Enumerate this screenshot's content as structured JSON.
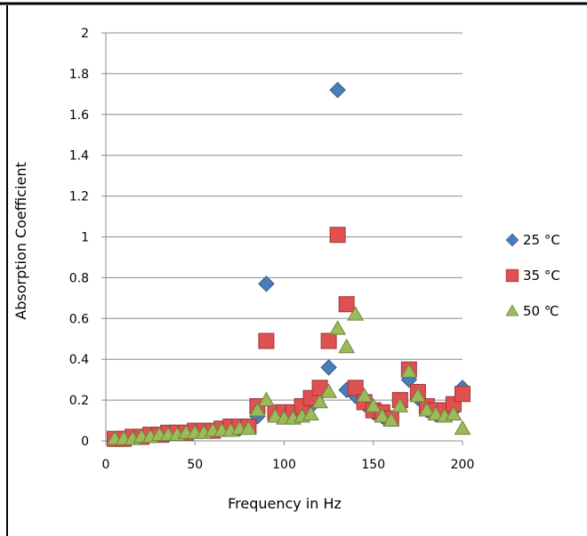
{
  "chart_data": {
    "type": "scatter",
    "title": "",
    "xlabel": "Frequency in Hz",
    "ylabel": "Absorption Coefficient",
    "xlim": [
      0,
      200
    ],
    "ylim": [
      0,
      2
    ],
    "xticks": [
      0,
      50,
      100,
      150,
      200
    ],
    "yticks": [
      0,
      0.2,
      0.4,
      0.6,
      0.8,
      1,
      1.2,
      1.4,
      1.6,
      1.8,
      2
    ],
    "grid": "horizontal",
    "legend_position": "right",
    "series": [
      {
        "name": "25 °C",
        "marker": "diamond",
        "color": "#4a7ebb",
        "x": [
          5,
          10,
          15,
          20,
          25,
          30,
          35,
          40,
          45,
          50,
          55,
          60,
          65,
          70,
          75,
          80,
          85,
          90,
          95,
          100,
          105,
          110,
          115,
          120,
          125,
          130,
          135,
          140,
          145,
          150,
          155,
          160,
          165,
          170,
          175,
          180,
          185,
          190,
          195,
          200
        ],
        "y": [
          0.01,
          0.01,
          0.02,
          0.02,
          0.03,
          0.03,
          0.03,
          0.04,
          0.04,
          0.05,
          0.05,
          0.05,
          0.06,
          0.06,
          0.06,
          0.07,
          0.12,
          0.77,
          0.13,
          0.13,
          0.13,
          0.14,
          0.17,
          0.23,
          0.36,
          1.72,
          0.25,
          0.22,
          0.18,
          0.14,
          0.12,
          0.11,
          0.2,
          0.3,
          0.21,
          0.15,
          0.13,
          0.13,
          0.15,
          0.26
        ]
      },
      {
        "name": "35 °C",
        "marker": "square",
        "color": "#e05050",
        "x": [
          5,
          10,
          15,
          20,
          25,
          30,
          35,
          40,
          45,
          50,
          55,
          60,
          65,
          70,
          75,
          80,
          85,
          90,
          95,
          100,
          105,
          110,
          115,
          120,
          125,
          130,
          135,
          140,
          145,
          150,
          155,
          160,
          165,
          170,
          175,
          180,
          185,
          190,
          195,
          200
        ],
        "y": [
          0.01,
          0.01,
          0.02,
          0.02,
          0.03,
          0.03,
          0.04,
          0.04,
          0.04,
          0.05,
          0.05,
          0.05,
          0.06,
          0.07,
          0.07,
          0.07,
          0.17,
          0.49,
          0.14,
          0.14,
          0.14,
          0.17,
          0.21,
          0.26,
          0.49,
          1.01,
          0.67,
          0.26,
          0.19,
          0.15,
          0.14,
          0.11,
          0.2,
          0.35,
          0.24,
          0.17,
          0.15,
          0.15,
          0.18,
          0.23
        ]
      },
      {
        "name": "50 ℃",
        "marker": "triangle",
        "color": "#9bbb59",
        "x": [
          5,
          10,
          15,
          20,
          25,
          30,
          35,
          40,
          45,
          50,
          55,
          60,
          65,
          70,
          75,
          80,
          85,
          90,
          95,
          100,
          105,
          110,
          115,
          120,
          125,
          130,
          135,
          140,
          145,
          150,
          155,
          160,
          165,
          170,
          175,
          180,
          185,
          190,
          195,
          200
        ],
        "y": [
          0.01,
          0.01,
          0.01,
          0.02,
          0.02,
          0.03,
          0.03,
          0.03,
          0.04,
          0.04,
          0.04,
          0.05,
          0.05,
          0.05,
          0.06,
          0.06,
          0.15,
          0.2,
          0.12,
          0.11,
          0.11,
          0.12,
          0.13,
          0.19,
          0.24,
          0.55,
          0.46,
          0.62,
          0.22,
          0.17,
          0.12,
          0.1,
          0.17,
          0.34,
          0.22,
          0.15,
          0.13,
          0.12,
          0.13,
          0.06
        ]
      }
    ]
  }
}
